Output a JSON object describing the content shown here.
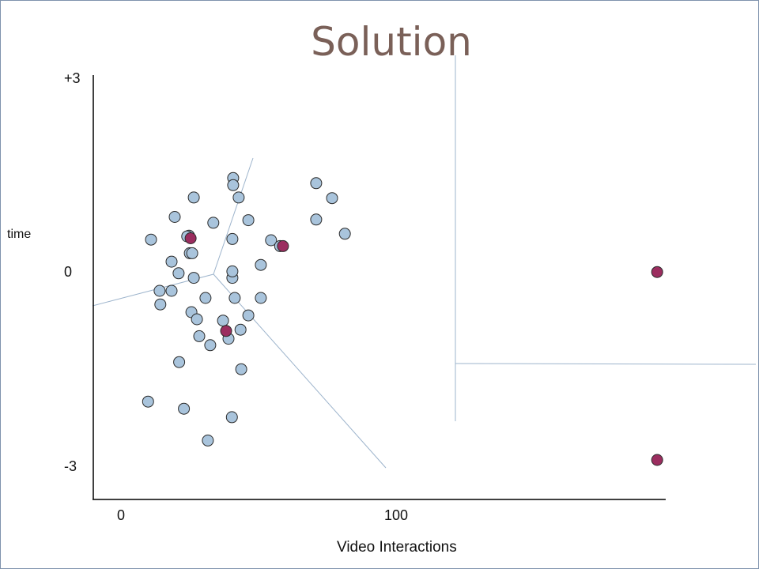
{
  "title": "Solution",
  "chart_data": {
    "type": "scatter",
    "xlabel": "Video Interactions",
    "ylabel": "time",
    "x_ticks": [
      "0",
      "100"
    ],
    "y_ticks": [
      "+3",
      "0",
      "-3"
    ],
    "xlim": [
      0,
      210
    ],
    "ylim": [
      -3.5,
      3
    ],
    "grid": false,
    "colors": {
      "cluster": "#a9c4dc",
      "highlight": "#9b2d5f",
      "divider": "#9db4cc",
      "axis": "#000000"
    },
    "series": [
      {
        "values": [
          [
            42.4,
            1.46
          ],
          [
            42.4,
            1.35
          ],
          [
            27.3,
            1.16
          ],
          [
            44.5,
            1.16
          ],
          [
            74.2,
            1.38
          ],
          [
            80.3,
            1.15
          ],
          [
            20.0,
            0.86
          ],
          [
            34.8,
            0.77
          ],
          [
            48.2,
            0.81
          ],
          [
            74.2,
            0.82
          ],
          [
            85.2,
            0.6
          ],
          [
            25.5,
            0.57
          ],
          [
            24.8,
            0.56
          ],
          [
            42.1,
            0.52
          ],
          [
            56.9,
            0.5
          ],
          [
            10.9,
            0.51
          ],
          [
            25.8,
            0.3
          ],
          [
            60.4,
            0.41
          ],
          [
            18.8,
            0.17
          ],
          [
            26.7,
            0.3
          ],
          [
            42.1,
            -0.08
          ],
          [
            53.0,
            0.12
          ],
          [
            21.5,
            -0.01
          ],
          [
            27.3,
            -0.08
          ],
          [
            42.1,
            0.02
          ],
          [
            14.2,
            -0.28
          ],
          [
            18.8,
            -0.28
          ],
          [
            31.8,
            -0.39
          ],
          [
            43.0,
            -0.39
          ],
          [
            53.0,
            -0.39
          ],
          [
            14.5,
            -0.49
          ],
          [
            26.4,
            -0.61
          ],
          [
            38.5,
            -0.74
          ],
          [
            48.2,
            -0.66
          ],
          [
            28.5,
            -0.72
          ],
          [
            29.4,
            -0.98
          ],
          [
            45.2,
            -0.88
          ],
          [
            21.7,
            -1.38
          ],
          [
            40.6,
            -1.02
          ],
          [
            33.6,
            -1.12
          ],
          [
            45.5,
            -1.49
          ],
          [
            9.8,
            -1.99
          ],
          [
            23.5,
            -2.1
          ],
          [
            41.9,
            -2.23
          ],
          [
            32.7,
            -2.59
          ]
        ]
      },
      {
        "values": [
          [
            26.1,
            0.53
          ],
          [
            61.5,
            0.41
          ],
          [
            39.7,
            -0.9
          ],
          [
            204.9,
            0.01
          ],
          [
            204.9,
            -2.89
          ]
        ]
      }
    ]
  }
}
